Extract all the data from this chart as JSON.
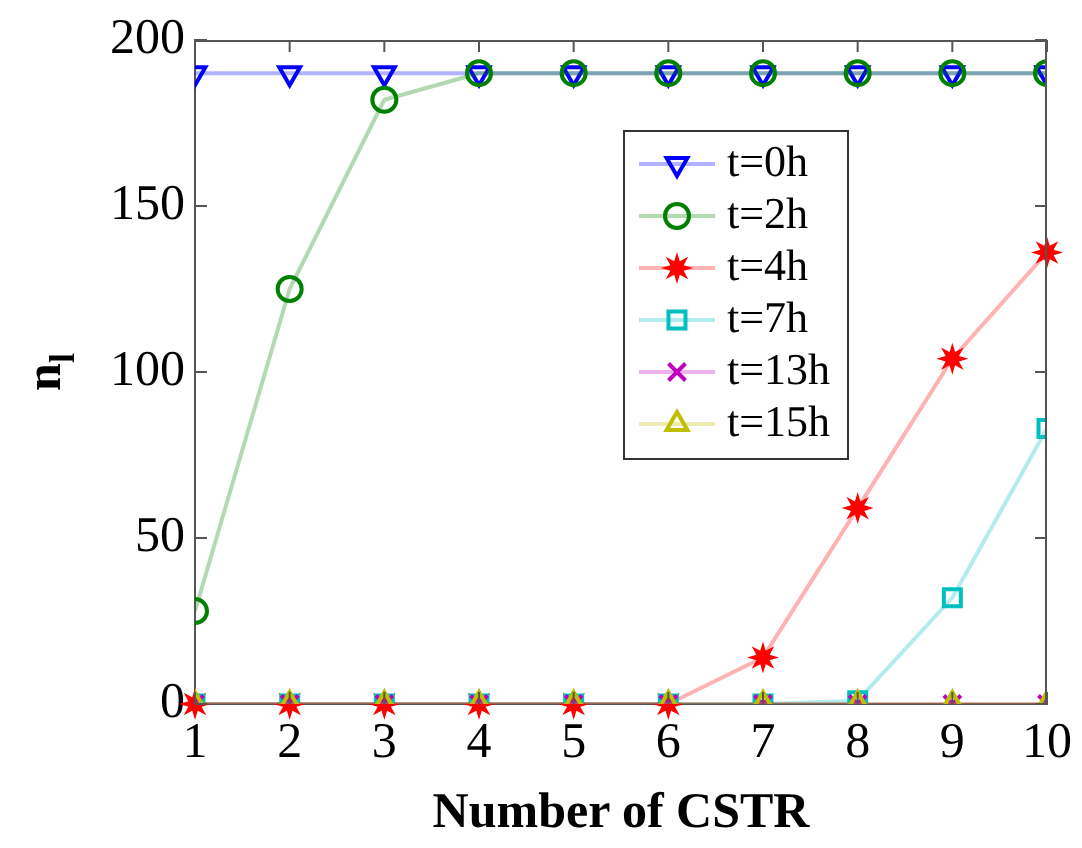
{
  "chart_data": {
    "type": "line",
    "xlabel": "Number of CSTR",
    "ylabel": "n$_{l}$",
    "x": [
      1,
      2,
      3,
      4,
      5,
      6,
      7,
      8,
      9,
      10
    ],
    "xlim": [
      1,
      10
    ],
    "xticks": [
      1,
      2,
      3,
      4,
      5,
      6,
      7,
      8,
      9,
      10
    ],
    "ylim": [
      0,
      200
    ],
    "yticks": [
      0,
      50,
      100,
      150,
      200
    ],
    "grid": false,
    "legend": "top right",
    "series": [
      {
        "name": "t=0h",
        "color": "#0000ff",
        "marker": "triangle-down",
        "values": [
          190,
          190,
          190,
          190,
          190,
          190,
          190,
          190,
          190,
          190
        ]
      },
      {
        "name": "t=2h",
        "color": "#008000",
        "marker": "circle",
        "values": [
          28,
          125,
          182,
          190,
          190,
          190,
          190,
          190,
          190,
          190
        ]
      },
      {
        "name": "t=4h",
        "color": "#ff0000",
        "marker": "star",
        "values": [
          0,
          0,
          0,
          0,
          0,
          0,
          14,
          59,
          104,
          136
        ]
      },
      {
        "name": "t=7h",
        "color": "#00bfbf",
        "marker": "square",
        "values": [
          0,
          0,
          0,
          0,
          0,
          0,
          0,
          1,
          32,
          83
        ]
      },
      {
        "name": "t=13h",
        "color": "#bf00bf",
        "marker": "cross",
        "values": [
          0,
          0,
          0,
          0,
          0,
          0,
          0,
          0,
          0,
          0
        ]
      },
      {
        "name": "t=15h",
        "color": "#bfbf00",
        "marker": "triangle",
        "values": [
          0,
          0,
          0,
          0,
          0,
          0,
          0,
          0,
          0,
          0
        ]
      }
    ]
  }
}
